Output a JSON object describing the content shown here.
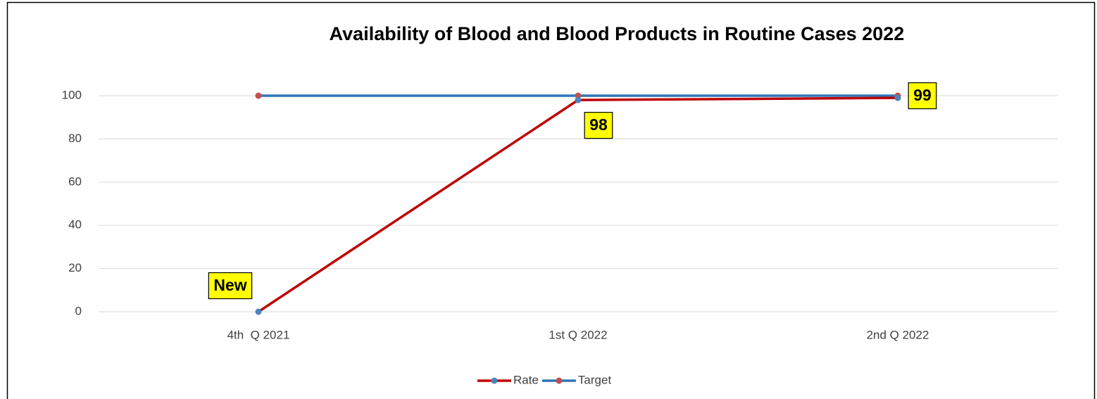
{
  "chart_data": {
    "type": "line",
    "title": "Availability of Blood and Blood Products in Routine Cases 2022",
    "categories": [
      "4th  Q 2021",
      "1st Q 2022",
      "2nd Q 2022"
    ],
    "series": [
      {
        "name": "Rate",
        "color": "#c00000",
        "marker_color": "#4f81bd",
        "values": [
          0,
          98,
          99
        ],
        "value_labels": [
          "New",
          "98",
          "99"
        ]
      },
      {
        "name": "Target",
        "color": "#2e75b6",
        "marker_color": "#c0504d",
        "values": [
          100,
          100,
          100
        ]
      }
    ],
    "ylim": [
      0,
      100
    ],
    "yticks": [
      0,
      20,
      40,
      60,
      80,
      100
    ],
    "grid": true,
    "legend": "bottom"
  }
}
